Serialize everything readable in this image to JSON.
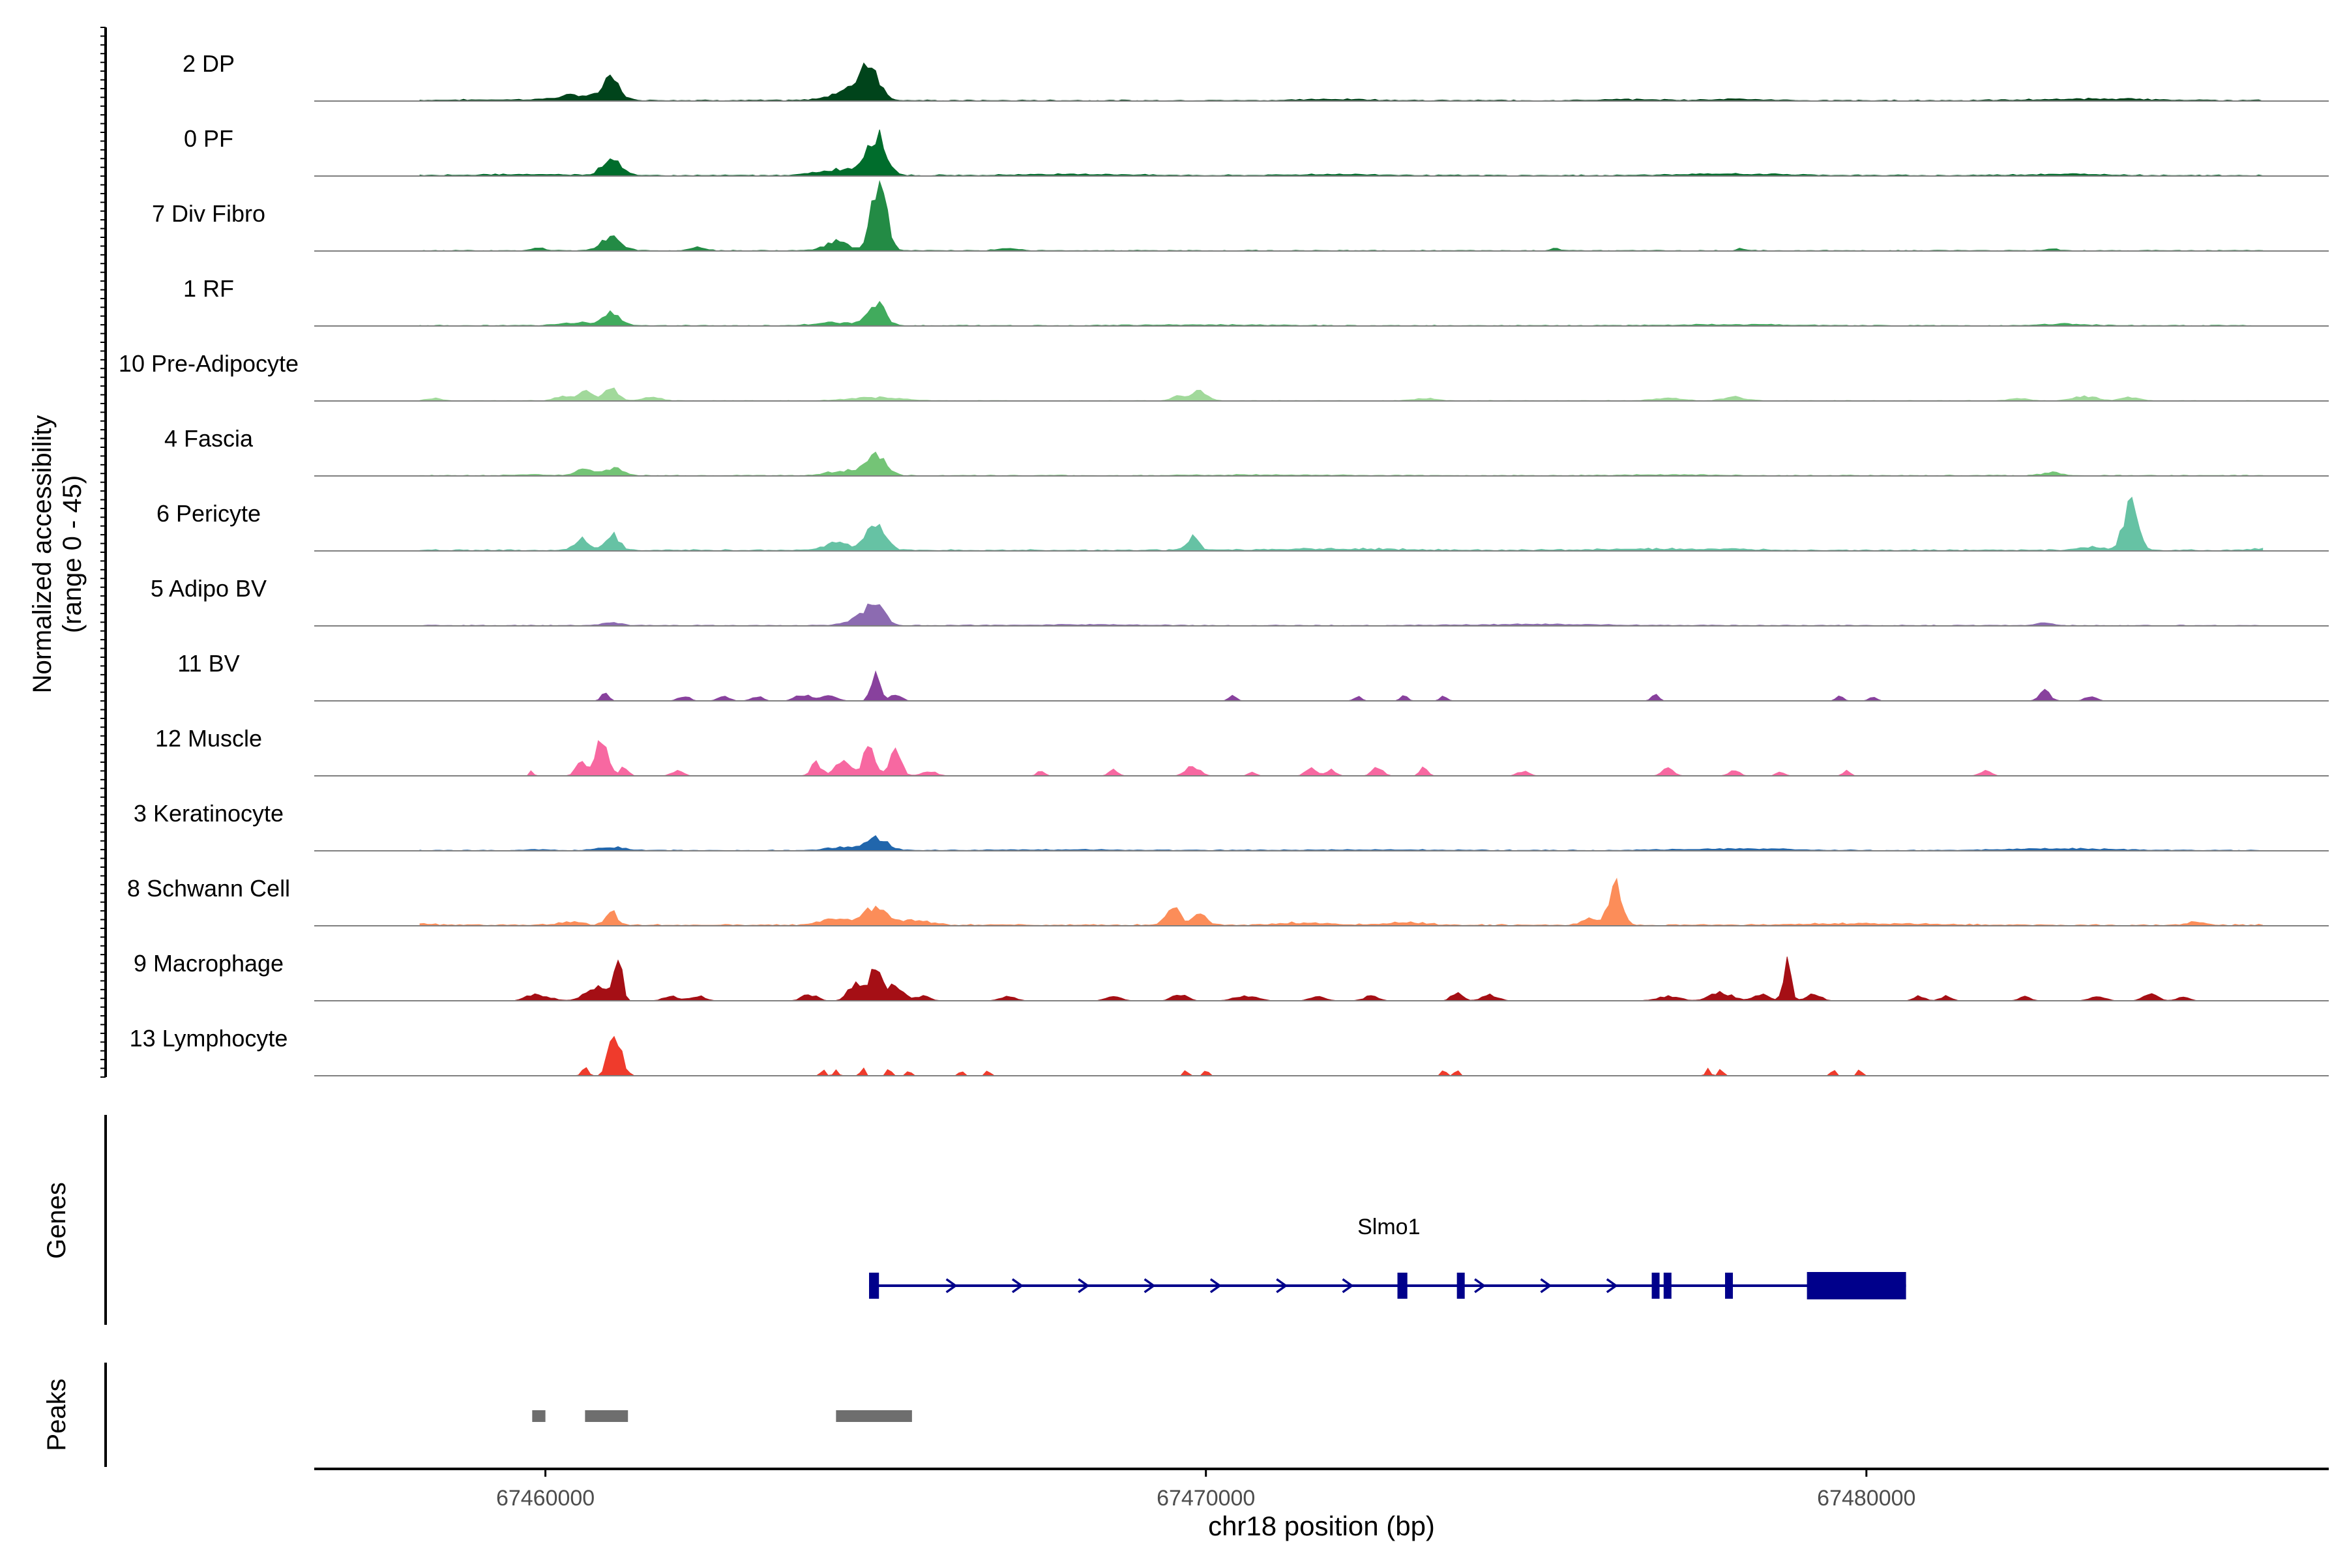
{
  "chart_data": {
    "type": "area",
    "ylabel_line1": "Normalized accessibility",
    "ylabel_line2": "(range 0 - 45)",
    "y_range": [
      0,
      45
    ],
    "xlabel": "chr18 position (bp)",
    "xlim": [
      67456500,
      67487000
    ],
    "x_ticks": [
      67460000,
      67470000,
      67480000
    ],
    "x_tick_labels": [
      "67460000",
      "67470000",
      "67480000"
    ],
    "series": [
      {
        "name": "2 DP",
        "color": "#00441b",
        "peaks": [
          [
            67459800,
            0.5,
            2000
          ],
          [
            67461000,
            13,
            220
          ],
          [
            67460500,
            3,
            500
          ],
          [
            67464900,
            22,
            250
          ],
          [
            67464600,
            6,
            500
          ],
          [
            67483500,
            1,
            1500
          ],
          [
            67478000,
            1,
            600
          ],
          [
            67472000,
            0.8,
            900
          ],
          [
            67476500,
            0.6,
            900
          ]
        ],
        "baseline": 0.4
      },
      {
        "name": "0 PF",
        "color": "#006d2c",
        "peaks": [
          [
            67461000,
            12,
            230
          ],
          [
            67465000,
            25,
            260
          ],
          [
            67464500,
            4,
            600
          ],
          [
            67459800,
            0.6,
            1500
          ],
          [
            67468000,
            0.8,
            1500
          ],
          [
            67472000,
            0.7,
            1200
          ],
          [
            67478000,
            0.9,
            1500
          ],
          [
            67483000,
            0.8,
            1200
          ]
        ],
        "baseline": 0.4
      },
      {
        "name": "7 Div Fibro",
        "color": "#238b45",
        "peaks": [
          [
            67461000,
            9,
            260
          ],
          [
            67465050,
            42,
            200
          ],
          [
            67464400,
            6,
            300
          ],
          [
            67459900,
            2,
            150
          ],
          [
            67462300,
            2,
            200
          ],
          [
            67467000,
            1.5,
            250
          ],
          [
            67475300,
            1.5,
            100
          ],
          [
            67478100,
            1.5,
            100
          ],
          [
            67482800,
            1.5,
            150
          ]
        ],
        "baseline": 0.3
      },
      {
        "name": "1 RF",
        "color": "#41ab5d",
        "peaks": [
          [
            67461000,
            8,
            230
          ],
          [
            67465000,
            15,
            230
          ],
          [
            67460500,
            2,
            400
          ],
          [
            67464400,
            2,
            500
          ],
          [
            67470000,
            0.5,
            1500
          ],
          [
            67478000,
            0.6,
            1500
          ],
          [
            67483000,
            1,
            600
          ]
        ],
        "baseline": 0.3
      },
      {
        "name": "10 Pre-Adipocyte",
        "color": "#a1d99b",
        "peaks": [
          [
            67460600,
            7,
            180
          ],
          [
            67461000,
            9,
            170
          ],
          [
            67460250,
            3,
            200
          ],
          [
            67461600,
            2,
            250
          ],
          [
            67465000,
            2,
            700
          ],
          [
            67469900,
            7,
            200
          ],
          [
            67469600,
            3,
            200
          ],
          [
            67473300,
            1.5,
            300
          ],
          [
            67477000,
            1.5,
            400
          ],
          [
            67478000,
            2.5,
            300
          ],
          [
            67483300,
            3,
            300
          ],
          [
            67484000,
            2,
            250
          ],
          [
            67482300,
            1.5,
            250
          ],
          [
            67458300,
            1.5,
            200
          ]
        ],
        "baseline": 0.2
      },
      {
        "name": "4 Fascia",
        "color": "#74c476",
        "peaks": [
          [
            67460600,
            4,
            250
          ],
          [
            67461050,
            5,
            230
          ],
          [
            67465000,
            14,
            260
          ],
          [
            67464500,
            3,
            400
          ],
          [
            67482800,
            2,
            250
          ],
          [
            67459800,
            0.5,
            500
          ],
          [
            67471000,
            0.4,
            1500
          ],
          [
            67477000,
            0.4,
            1500
          ]
        ],
        "baseline": 0.3
      },
      {
        "name": "6 Pericyte",
        "color": "#66c2a4",
        "peaks": [
          [
            67460550,
            8,
            180
          ],
          [
            67461000,
            10,
            200
          ],
          [
            67464400,
            5,
            300
          ],
          [
            67465000,
            17,
            260
          ],
          [
            67469800,
            8,
            150
          ],
          [
            67484000,
            28,
            200
          ],
          [
            67483400,
            2,
            300
          ],
          [
            67472000,
            0.8,
            1800
          ],
          [
            67477000,
            0.8,
            1800
          ],
          [
            67486000,
            1,
            300
          ]
        ],
        "baseline": 0.5
      },
      {
        "name": "5 Adipo BV",
        "color": "#8c6bb1",
        "peaks": [
          [
            67461000,
            2,
            250
          ],
          [
            67465000,
            16,
            230
          ],
          [
            67464700,
            4,
            300
          ],
          [
            67482700,
            1.5,
            200
          ],
          [
            67475000,
            0.7,
            1800
          ],
          [
            67468000,
            0.5,
            1500
          ]
        ],
        "baseline": 0.3
      },
      {
        "name": "11 BV",
        "color": "#88419d",
        "peaks": [
          [
            67460900,
            5,
            100
          ],
          [
            67462100,
            3,
            150
          ],
          [
            67462700,
            3,
            150
          ],
          [
            67463200,
            3,
            150
          ],
          [
            67463900,
            4,
            200
          ],
          [
            67464300,
            4,
            200
          ],
          [
            67465000,
            18,
            120
          ],
          [
            67465300,
            4,
            150
          ],
          [
            67470400,
            3,
            100
          ],
          [
            67472300,
            3,
            100
          ],
          [
            67473000,
            3,
            100
          ],
          [
            67473600,
            3,
            100
          ],
          [
            67476800,
            4,
            100
          ],
          [
            67479600,
            3,
            100
          ],
          [
            67480100,
            3,
            100
          ],
          [
            67482700,
            6,
            150
          ],
          [
            67483400,
            3,
            150
          ]
        ],
        "baseline": 0
      },
      {
        "name": "12 Muscle",
        "color": "#f768a1",
        "peaks": [
          [
            67460850,
            26,
            160
          ],
          [
            67460550,
            9,
            150
          ],
          [
            67461200,
            6,
            100
          ],
          [
            67462000,
            3,
            150
          ],
          [
            67464100,
            8,
            140
          ],
          [
            67464500,
            10,
            200
          ],
          [
            67464900,
            18,
            160
          ],
          [
            67465300,
            16,
            150
          ],
          [
            67465800,
            3,
            200
          ],
          [
            67467500,
            3,
            100
          ],
          [
            67468600,
            4,
            120
          ],
          [
            67469800,
            6,
            180
          ],
          [
            67470700,
            3,
            100
          ],
          [
            67471600,
            5,
            150
          ],
          [
            67471900,
            4,
            120
          ],
          [
            67472600,
            5,
            150
          ],
          [
            67473300,
            5,
            100
          ],
          [
            67474800,
            3,
            150
          ],
          [
            67477000,
            5,
            150
          ],
          [
            67478000,
            3,
            150
          ],
          [
            67478700,
            3,
            100
          ],
          [
            67479700,
            3,
            100
          ],
          [
            67481800,
            3,
            150
          ],
          [
            67459800,
            4,
            40
          ]
        ],
        "baseline": 0
      },
      {
        "name": "3 Keratinocyte",
        "color": "#2166ac",
        "peaks": [
          [
            67461000,
            2,
            350
          ],
          [
            67465000,
            8,
            300
          ],
          [
            67464500,
            2,
            400
          ],
          [
            67478000,
            1,
            1500
          ],
          [
            67483000,
            1,
            1500
          ],
          [
            67468000,
            0.4,
            2000
          ],
          [
            67472500,
            0.4,
            2000
          ],
          [
            67459900,
            0.6,
            300
          ]
        ],
        "baseline": 0.3
      },
      {
        "name": "8 Schwann Cell",
        "color": "#fc8d59",
        "peaks": [
          [
            67461000,
            8,
            150
          ],
          [
            67460400,
            2,
            300
          ],
          [
            67464400,
            4,
            400
          ],
          [
            67465000,
            11,
            300
          ],
          [
            67465600,
            3,
            400
          ],
          [
            67469500,
            12,
            180
          ],
          [
            67469900,
            8,
            180
          ],
          [
            67476200,
            25,
            180
          ],
          [
            67475800,
            4,
            200
          ],
          [
            67471500,
            1.5,
            600
          ],
          [
            67473000,
            1.5,
            600
          ],
          [
            67480000,
            1,
            1500
          ],
          [
            67485000,
            2,
            250
          ],
          [
            67458000,
            1.2,
            400
          ]
        ],
        "baseline": 0.5
      },
      {
        "name": "9 Macrophage",
        "color": "#a50f15",
        "peaks": [
          [
            67461100,
            28,
            100
          ],
          [
            67460800,
            10,
            300
          ],
          [
            67459800,
            3,
            200
          ],
          [
            67460000,
            2,
            300
          ],
          [
            67461900,
            3,
            200
          ],
          [
            67462300,
            3,
            200
          ],
          [
            67464000,
            4,
            200
          ],
          [
            67464700,
            12,
            200
          ],
          [
            67465000,
            18,
            180
          ],
          [
            67465300,
            10,
            200
          ],
          [
            67465700,
            3,
            200
          ],
          [
            67467000,
            3,
            200
          ],
          [
            67468600,
            3,
            200
          ],
          [
            67469600,
            4,
            200
          ],
          [
            67470600,
            3,
            300
          ],
          [
            67471700,
            3,
            200
          ],
          [
            67472500,
            3,
            200
          ],
          [
            67473800,
            5,
            150
          ],
          [
            67474300,
            4,
            200
          ],
          [
            67477000,
            3,
            300
          ],
          [
            67477800,
            5,
            300
          ],
          [
            67478400,
            4,
            200
          ],
          [
            67478800,
            25,
            100
          ],
          [
            67479200,
            4,
            200
          ],
          [
            67480800,
            3,
            150
          ],
          [
            67481200,
            3,
            150
          ],
          [
            67482400,
            3,
            150
          ],
          [
            67483500,
            3,
            200
          ],
          [
            67484300,
            4,
            200
          ],
          [
            67484800,
            3,
            150
          ]
        ],
        "baseline": 0
      },
      {
        "name": "13 Lymphocyte",
        "color": "#ef3b2c",
        "peaks": [
          [
            67461000,
            22,
            120
          ],
          [
            67461100,
            15,
            150
          ],
          [
            67460600,
            6,
            80
          ],
          [
            67464200,
            4,
            60
          ],
          [
            67464400,
            4,
            60
          ],
          [
            67464800,
            5,
            60
          ],
          [
            67465200,
            6,
            60
          ],
          [
            67465500,
            4,
            60
          ],
          [
            67466300,
            4,
            60
          ],
          [
            67466700,
            4,
            60
          ],
          [
            67469700,
            4,
            60
          ],
          [
            67470000,
            4,
            60
          ],
          [
            67473600,
            4,
            60
          ],
          [
            67473800,
            4,
            60
          ],
          [
            67477600,
            4,
            60
          ],
          [
            67477800,
            4,
            60
          ],
          [
            67479500,
            4,
            60
          ],
          [
            67479900,
            4,
            60
          ]
        ],
        "baseline": 0
      }
    ],
    "genes": [
      {
        "name": "Slmo1",
        "strand": "+",
        "start": 67464900,
        "end": 67480600,
        "exons": [
          [
            67464900,
            67465050
          ],
          [
            67472900,
            67473050
          ],
          [
            67473800,
            67473870
          ],
          [
            67476750,
            67476820
          ],
          [
            67476930,
            67477020
          ],
          [
            67477860,
            67477960
          ],
          [
            67479100,
            67480600
          ]
        ]
      }
    ],
    "peaks_track": [
      [
        67459800,
        67460000
      ],
      [
        67460600,
        67461250
      ],
      [
        67464400,
        67465550
      ]
    ],
    "labels": {
      "genes": "Genes",
      "peaks": "Peaks"
    }
  }
}
